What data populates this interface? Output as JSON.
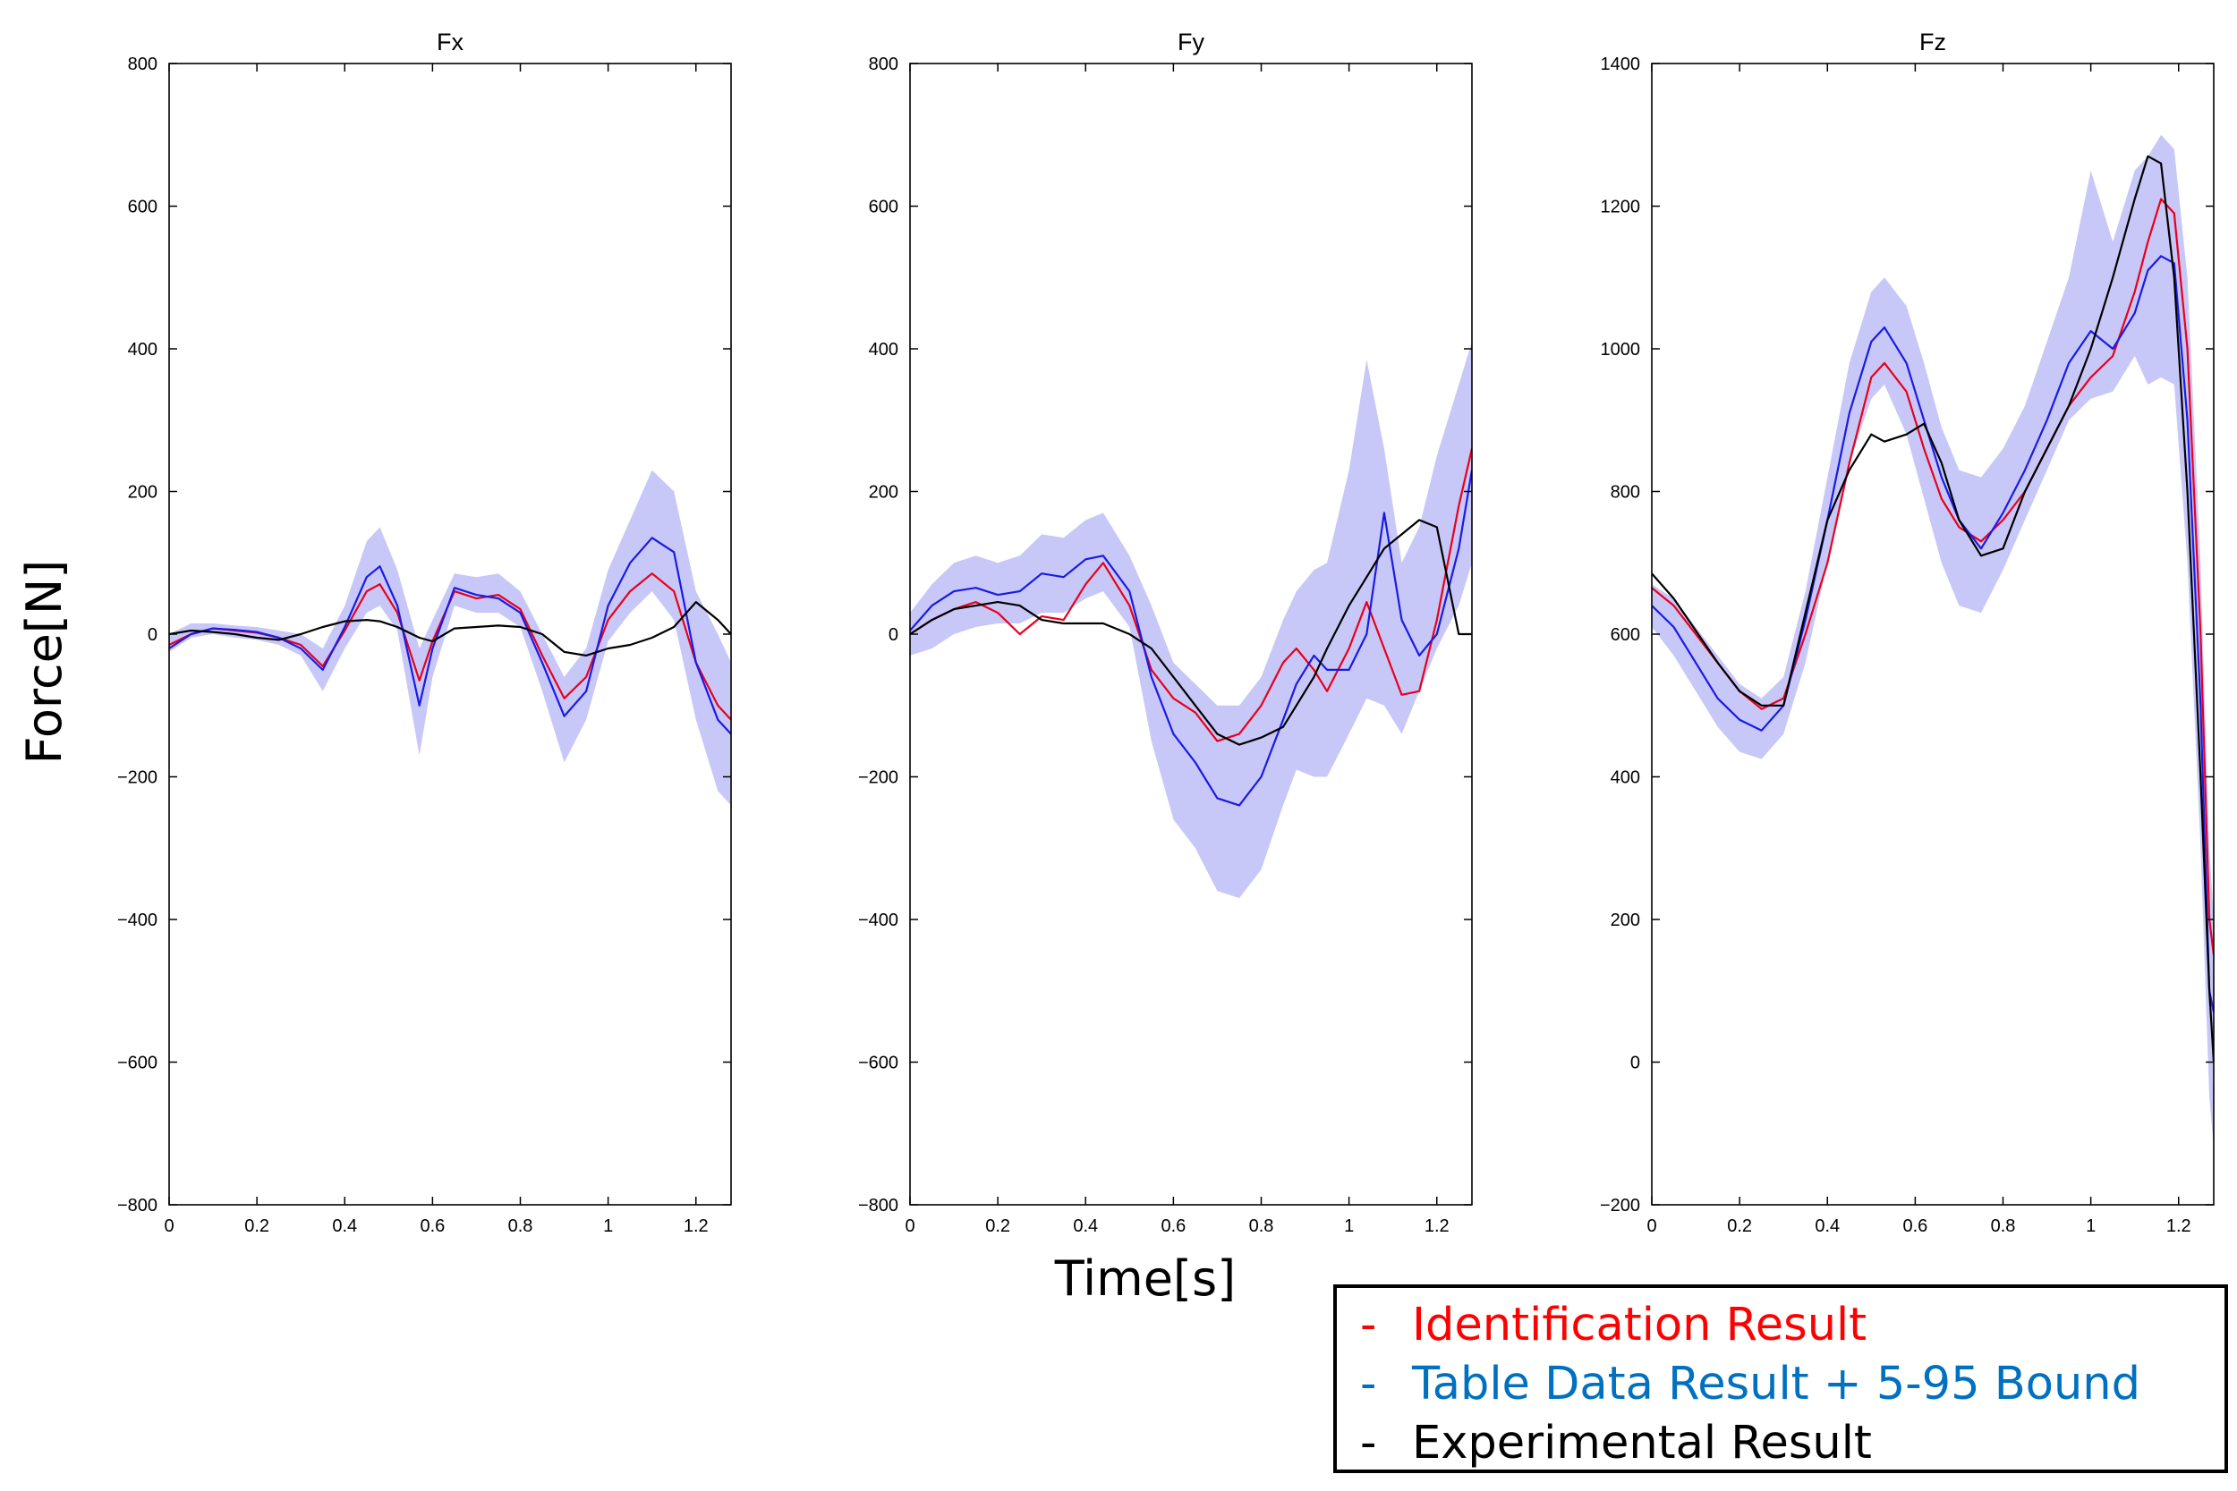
{
  "figure": {
    "ylabel": "Force[N]",
    "xlabel": "Time[s]"
  },
  "legend": [
    {
      "symbol": "-",
      "label": "Identification Result",
      "color": "#ff0000"
    },
    {
      "symbol": "-",
      "label": "Table Data Result + 5-95 Bound",
      "color": "#0070c0"
    },
    {
      "symbol": "-",
      "label": "Experimental Result",
      "color": "#000000"
    }
  ],
  "colors": {
    "identification": "#e8001c",
    "table": "#1a1ae6",
    "band": "#c8c8f8",
    "experimental": "#000000"
  },
  "chart_data": [
    {
      "type": "line",
      "title": "Fx",
      "xlim": [
        0,
        1.28
      ],
      "ylim": [
        -800,
        800
      ],
      "xticks": [
        0,
        0.2,
        0.4,
        0.6,
        0.8,
        1,
        1.2
      ],
      "xtick_labels": [
        "0",
        "0.2",
        "0.4",
        "0.6",
        "0.8",
        "1",
        "1.2"
      ],
      "yticks": [
        -800,
        -600,
        -400,
        -200,
        0,
        200,
        400,
        600,
        800
      ],
      "ytick_labels": [
        "−800",
        "−600",
        "−400",
        "−200",
        "0",
        "200",
        "400",
        "600",
        "800"
      ],
      "x": [
        0,
        0.05,
        0.1,
        0.15,
        0.2,
        0.25,
        0.3,
        0.35,
        0.4,
        0.45,
        0.48,
        0.52,
        0.57,
        0.6,
        0.65,
        0.7,
        0.75,
        0.8,
        0.85,
        0.9,
        0.95,
        1.0,
        1.05,
        1.1,
        1.15,
        1.2,
        1.25,
        1.28
      ],
      "series": [
        {
          "name": "Identification Result",
          "values": [
            -15,
            0,
            8,
            5,
            2,
            -5,
            -15,
            -45,
            5,
            60,
            70,
            30,
            -65,
            -10,
            60,
            50,
            55,
            35,
            -30,
            -90,
            -60,
            20,
            60,
            85,
            60,
            -40,
            -100,
            -120
          ]
        },
        {
          "name": "Table Data Result",
          "values": [
            -20,
            0,
            8,
            6,
            3,
            -5,
            -20,
            -50,
            10,
            80,
            95,
            40,
            -100,
            -20,
            65,
            55,
            50,
            30,
            -40,
            -115,
            -80,
            40,
            100,
            135,
            115,
            -40,
            -120,
            -140
          ]
        },
        {
          "name": "Experimental Result",
          "values": [
            0,
            5,
            3,
            0,
            -5,
            -8,
            0,
            10,
            18,
            20,
            18,
            10,
            -5,
            -10,
            8,
            10,
            12,
            10,
            0,
            -25,
            -30,
            -20,
            -15,
            -5,
            10,
            45,
            20,
            0
          ]
        },
        {
          "name": "5-95 Bound lower",
          "values": [
            -25,
            -5,
            0,
            -5,
            -8,
            -15,
            -30,
            -80,
            -20,
            30,
            40,
            5,
            -170,
            -60,
            40,
            30,
            30,
            10,
            -80,
            -180,
            -120,
            -10,
            30,
            60,
            20,
            -120,
            -220,
            -240
          ]
        },
        {
          "name": "5-95 Bound upper",
          "values": [
            0,
            15,
            15,
            12,
            10,
            5,
            0,
            -20,
            40,
            130,
            150,
            90,
            -20,
            20,
            85,
            80,
            85,
            60,
            0,
            -60,
            -20,
            90,
            160,
            230,
            200,
            60,
            0,
            -40
          ]
        }
      ]
    },
    {
      "type": "line",
      "title": "Fy",
      "xlim": [
        0,
        1.28
      ],
      "ylim": [
        -800,
        800
      ],
      "xticks": [
        0,
        0.2,
        0.4,
        0.6,
        0.8,
        1,
        1.2
      ],
      "xtick_labels": [
        "0",
        "0.2",
        "0.4",
        "0.6",
        "0.8",
        "1",
        "1.2"
      ],
      "yticks": [
        -800,
        -600,
        -400,
        -200,
        0,
        200,
        400,
        600,
        800
      ],
      "ytick_labels": [
        "−800",
        "−600",
        "−400",
        "−200",
        "0",
        "200",
        "400",
        "600",
        "800"
      ],
      "x": [
        0,
        0.05,
        0.1,
        0.15,
        0.2,
        0.25,
        0.3,
        0.35,
        0.4,
        0.44,
        0.5,
        0.55,
        0.6,
        0.65,
        0.7,
        0.75,
        0.8,
        0.85,
        0.88,
        0.92,
        0.95,
        1.0,
        1.04,
        1.08,
        1.12,
        1.16,
        1.2,
        1.25,
        1.28
      ],
      "series": [
        {
          "name": "Identification Result",
          "values": [
            0,
            20,
            35,
            45,
            30,
            0,
            25,
            20,
            70,
            100,
            40,
            -50,
            -90,
            -110,
            -150,
            -140,
            -100,
            -40,
            -20,
            -50,
            -80,
            -20,
            45,
            -20,
            -85,
            -80,
            20,
            180,
            260
          ]
        },
        {
          "name": "Table Data Result",
          "values": [
            5,
            40,
            60,
            65,
            55,
            60,
            85,
            80,
            105,
            110,
            60,
            -60,
            -140,
            -180,
            -230,
            -240,
            -200,
            -120,
            -70,
            -30,
            -50,
            -50,
            0,
            170,
            20,
            -30,
            0,
            120,
            230
          ]
        },
        {
          "name": "Experimental Result",
          "values": [
            0,
            20,
            35,
            40,
            45,
            40,
            20,
            15,
            15,
            15,
            0,
            -20,
            -60,
            -100,
            -140,
            -155,
            -145,
            -130,
            -100,
            -60,
            -20,
            40,
            80,
            120,
            140,
            160,
            150,
            0,
            0
          ]
        },
        {
          "name": "5-95 Bound lower",
          "values": [
            -30,
            -20,
            0,
            10,
            15,
            15,
            30,
            30,
            50,
            60,
            10,
            -150,
            -260,
            -300,
            -360,
            -370,
            -330,
            -240,
            -190,
            -200,
            -200,
            -140,
            -90,
            -100,
            -140,
            -80,
            -20,
            40,
            100
          ]
        },
        {
          "name": "5-95 Bound upper",
          "values": [
            30,
            70,
            100,
            110,
            100,
            110,
            140,
            135,
            160,
            170,
            110,
            40,
            -40,
            -70,
            -100,
            -100,
            -60,
            20,
            60,
            90,
            100,
            230,
            385,
            260,
            100,
            150,
            250,
            350,
            410
          ]
        }
      ]
    },
    {
      "type": "line",
      "title": "Fz",
      "xlim": [
        0,
        1.28
      ],
      "ylim": [
        -200,
        1400
      ],
      "xticks": [
        0,
        0.2,
        0.4,
        0.6,
        0.8,
        1,
        1.2
      ],
      "xtick_labels": [
        "0",
        "0.2",
        "0.4",
        "0.6",
        "0.8",
        "1",
        "1.2"
      ],
      "yticks": [
        -200,
        0,
        200,
        400,
        600,
        800,
        1000,
        1200,
        1400
      ],
      "ytick_labels": [
        "−200",
        "0",
        "200",
        "400",
        "600",
        "800",
        "1000",
        "1200",
        "1400"
      ],
      "x": [
        0,
        0.05,
        0.1,
        0.15,
        0.2,
        0.25,
        0.3,
        0.35,
        0.4,
        0.45,
        0.5,
        0.53,
        0.58,
        0.62,
        0.66,
        0.7,
        0.75,
        0.8,
        0.85,
        0.9,
        0.95,
        1.0,
        1.05,
        1.1,
        1.13,
        1.16,
        1.19,
        1.22,
        1.25,
        1.27,
        1.28
      ],
      "series": [
        {
          "name": "Identification Result",
          "values": [
            665,
            640,
            600,
            560,
            520,
            495,
            510,
            600,
            700,
            840,
            960,
            980,
            940,
            860,
            790,
            750,
            730,
            760,
            800,
            860,
            920,
            960,
            990,
            1080,
            1150,
            1210,
            1190,
            1000,
            600,
            200,
            150
          ]
        },
        {
          "name": "Table Data Result",
          "values": [
            640,
            610,
            560,
            510,
            480,
            465,
            500,
            620,
            760,
            910,
            1010,
            1030,
            980,
            900,
            820,
            760,
            720,
            770,
            830,
            900,
            980,
            1025,
            1000,
            1050,
            1110,
            1130,
            1120,
            900,
            500,
            100,
            70
          ]
        },
        {
          "name": "Experimental Result",
          "values": [
            685,
            650,
            605,
            560,
            520,
            500,
            500,
            630,
            760,
            830,
            880,
            870,
            880,
            895,
            840,
            760,
            710,
            720,
            800,
            860,
            920,
            1000,
            1100,
            1210,
            1270,
            1260,
            1100,
            800,
            400,
            100,
            0
          ]
        },
        {
          "name": "5-95 Bound lower",
          "values": [
            610,
            570,
            520,
            470,
            435,
            425,
            460,
            560,
            700,
            840,
            930,
            950,
            880,
            790,
            700,
            640,
            630,
            690,
            760,
            830,
            900,
            930,
            940,
            990,
            950,
            960,
            950,
            700,
            300,
            -50,
            -120
          ]
        },
        {
          "name": "5-95 Bound upper",
          "values": [
            670,
            650,
            610,
            570,
            530,
            510,
            540,
            660,
            820,
            980,
            1080,
            1100,
            1060,
            980,
            890,
            830,
            820,
            860,
            920,
            1010,
            1100,
            1250,
            1150,
            1250,
            1270,
            1300,
            1280,
            1100,
            700,
            300,
            200
          ]
        }
      ]
    }
  ]
}
